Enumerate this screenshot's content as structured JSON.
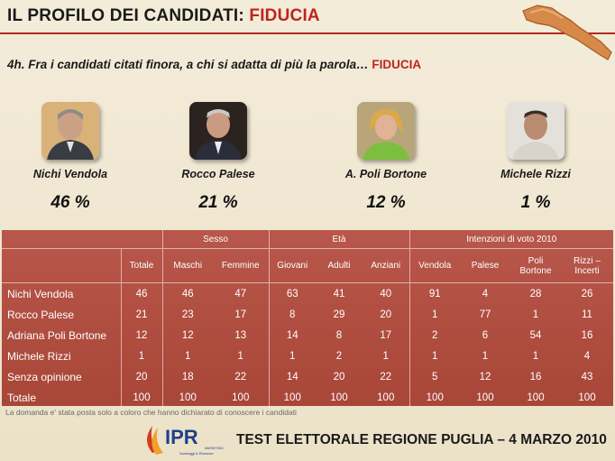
{
  "header": {
    "title_prefix": "IL PROFILO DEI CANDIDATI:",
    "title_highlight": "FIDUCIA"
  },
  "question": {
    "text": "4h. Fra i candidati citati finora, a chi si adatta di più la parola…",
    "highlight": "FIDUCIA"
  },
  "candidates": [
    {
      "name": "Nichi Vendola",
      "pct": "46 %"
    },
    {
      "name": "Rocco Palese",
      "pct": "21 %"
    },
    {
      "name": "A. Poli Bortone",
      "pct": "12 %"
    },
    {
      "name": "Michele Rizzi",
      "pct": "1 %"
    }
  ],
  "table": {
    "groups": {
      "sesso": "Sesso",
      "eta": "Età",
      "intenzioni": "Intenzioni di voto 2010"
    },
    "subheaders": [
      "Totale",
      "Maschi",
      "Femmine",
      "Giovani",
      "Adulti",
      "Anziani",
      "Vendola",
      "Palese",
      "Poli\nBortone",
      "Rizzi –\nIncerti"
    ],
    "rows": [
      {
        "label": "Nichi Vendola",
        "values": [
          "46",
          "46",
          "47",
          "63",
          "41",
          "40",
          "91",
          "4",
          "28",
          "26"
        ]
      },
      {
        "label": "Rocco Palese",
        "values": [
          "21",
          "23",
          "17",
          "8",
          "29",
          "20",
          "1",
          "77",
          "1",
          "11"
        ]
      },
      {
        "label": "Adriana Poli Bortone",
        "values": [
          "12",
          "12",
          "13",
          "14",
          "8",
          "17",
          "2",
          "6",
          "54",
          "16"
        ]
      },
      {
        "label": "Michele Rizzi",
        "values": [
          "1",
          "1",
          "1",
          "1",
          "2",
          "1",
          "1",
          "1",
          "1",
          "4"
        ]
      },
      {
        "label": "Senza opinione",
        "values": [
          "20",
          "18",
          "22",
          "14",
          "20",
          "22",
          "5",
          "12",
          "16",
          "43"
        ]
      },
      {
        "label": "Totale",
        "values": [
          "100",
          "100",
          "100",
          "100",
          "100",
          "100",
          "100",
          "100",
          "100",
          "100"
        ]
      }
    ]
  },
  "footnote": "La domanda e' stata posta solo a coloro che hanno dichiarato di conoscere i candidati",
  "logo": {
    "text": "IPR",
    "subtext": "MARKETING",
    "subtext2": "Sondaggi & Ricerche"
  },
  "footer": {
    "text": "TEST ELETTORALE REGIONE PUGLIA – 4 MARZO 2010"
  },
  "colors": {
    "accent": "#c0231e",
    "table_bg": "#b0503f"
  },
  "icons": {
    "map": "puglia-map-icon"
  }
}
